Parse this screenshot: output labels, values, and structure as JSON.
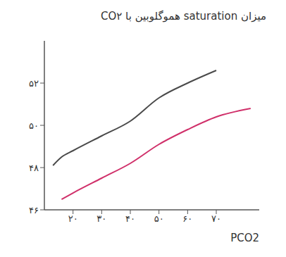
{
  "chart_data": {
    "type": "line",
    "title": "میزان saturation هموگلوبین با CO۲",
    "x_label": "PCO2",
    "x": [
      13,
      16,
      20,
      30,
      40,
      50,
      60,
      70,
      82
    ],
    "series": [
      {
        "color": "#4a4a4a",
        "values": [
          48.1,
          48.5,
          48.8,
          49.5,
          50.2,
          51.3,
          52.0,
          52.6,
          null
        ]
      },
      {
        "color": "#d0306a",
        "values": [
          null,
          46.5,
          46.8,
          47.5,
          48.2,
          49.1,
          49.8,
          50.4,
          50.8
        ]
      }
    ],
    "xlim": [
      10,
      85
    ],
    "xticks": [
      {
        "value": 20,
        "label": "۲۰"
      },
      {
        "value": 30,
        "label": "۳۰"
      },
      {
        "value": 40,
        "label": "۴۰"
      },
      {
        "value": 50,
        "label": "۵۰"
      },
      {
        "value": 60,
        "label": "۶۰"
      },
      {
        "value": 70,
        "label": "۷۰"
      }
    ],
    "ylim": [
      46,
      54
    ],
    "yticks": [
      {
        "value": 46,
        "label": "۴۶"
      },
      {
        "value": 48,
        "label": "۴۸"
      },
      {
        "value": 50,
        "label": "۵۰"
      },
      {
        "value": 52,
        "label": "۵۲"
      }
    ],
    "grid": false
  }
}
